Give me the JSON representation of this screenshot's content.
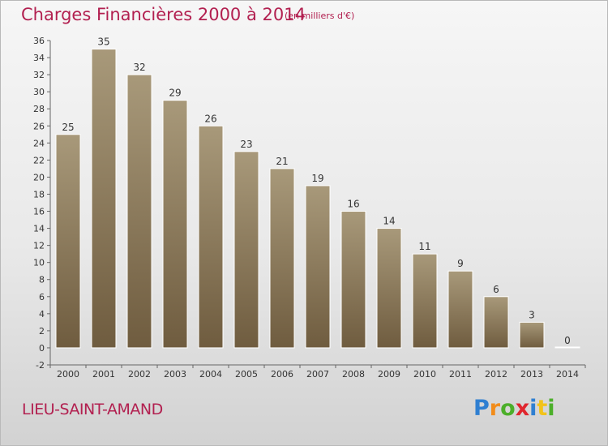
{
  "header": {
    "title": "Charges Financières 2000 à 2014",
    "subtitle": "(en milliers d'€)"
  },
  "footer": {
    "town": "LIEU-SAINT-AMAND",
    "logo_letters": [
      {
        "char": "P",
        "color": "#2f7fd1"
      },
      {
        "char": "r",
        "color": "#f28c1a"
      },
      {
        "char": "o",
        "color": "#4caf2a"
      },
      {
        "char": "x",
        "color": "#e0262e"
      },
      {
        "char": "i",
        "color": "#2f7fd1"
      },
      {
        "char": "t",
        "color": "#f2c31a"
      },
      {
        "char": "i",
        "color": "#4caf2a"
      }
    ]
  },
  "colors": {
    "accent": "#b22050",
    "bar_top": "#a8997a",
    "bar_bottom": "#6f5c3f"
  },
  "chart_data": {
    "type": "bar",
    "title": "Charges Financières 2000 à 2014",
    "subtitle": "(en milliers d'€)",
    "categories": [
      "2000",
      "2001",
      "2002",
      "2003",
      "2004",
      "2005",
      "2006",
      "2007",
      "2008",
      "2009",
      "2010",
      "2011",
      "2012",
      "2013",
      "2014"
    ],
    "values": [
      25,
      35,
      32,
      29,
      26,
      23,
      21,
      19,
      16,
      14,
      11,
      9,
      6,
      3,
      0
    ],
    "ylim": [
      -2,
      36
    ],
    "yticks": [
      -2,
      0,
      2,
      4,
      6,
      8,
      10,
      12,
      14,
      16,
      18,
      20,
      22,
      24,
      26,
      28,
      30,
      32,
      34,
      36
    ],
    "grid": false,
    "xlabel": "",
    "ylabel": ""
  }
}
